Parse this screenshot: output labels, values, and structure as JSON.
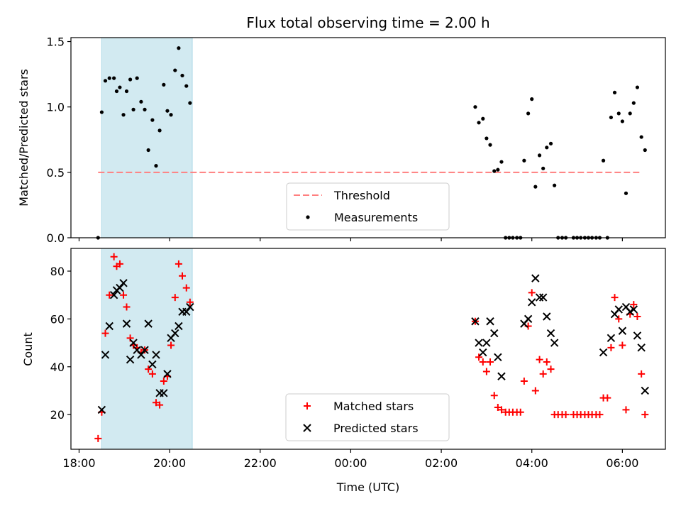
{
  "chart_data": [
    {
      "panel": "top",
      "type": "scatter",
      "title": "Flux total observing time = 2.00 h",
      "xlabel": "",
      "ylabel": "Matched/Predicted stars",
      "ylim": [
        0.0,
        1.53
      ],
      "yticks": [
        "0.0",
        "0.5",
        "1.0",
        "1.5"
      ],
      "ytick_values": [
        0.0,
        0.5,
        1.0,
        1.5
      ],
      "x_unit": "hours since 18:00 UTC",
      "xlim": [
        -0.18,
        12.95
      ],
      "shaded_span": [
        0.5,
        2.5
      ],
      "shade_color": "#add8e6",
      "threshold": {
        "name": "Threshold",
        "value": 0.5,
        "x_range": [
          0.42,
          12.4
        ],
        "color": "#ff7f7f"
      },
      "legend": {
        "placement": "lower-center",
        "entries": [
          "Threshold",
          "Measurements"
        ]
      },
      "series": [
        {
          "name": "Measurements",
          "color": "#000000",
          "points": [
            [
              0.42,
              0.0
            ],
            [
              0.5,
              0.96
            ],
            [
              0.58,
              1.2
            ],
            [
              0.67,
              1.22
            ],
            [
              0.77,
              1.22
            ],
            [
              0.83,
              1.12
            ],
            [
              0.9,
              1.15
            ],
            [
              0.98,
              0.94
            ],
            [
              1.05,
              1.12
            ],
            [
              1.13,
              1.21
            ],
            [
              1.2,
              0.98
            ],
            [
              1.28,
              1.22
            ],
            [
              1.37,
              1.04
            ],
            [
              1.45,
              0.98
            ],
            [
              1.53,
              0.67
            ],
            [
              1.62,
              0.9
            ],
            [
              1.7,
              0.55
            ],
            [
              1.78,
              0.82
            ],
            [
              1.87,
              1.17
            ],
            [
              1.95,
              0.97
            ],
            [
              2.03,
              0.94
            ],
            [
              2.12,
              1.28
            ],
            [
              2.2,
              1.45
            ],
            [
              2.28,
              1.24
            ],
            [
              2.37,
              1.16
            ],
            [
              2.45,
              1.03
            ],
            [
              8.75,
              1.0
            ],
            [
              8.83,
              0.88
            ],
            [
              8.92,
              0.91
            ],
            [
              9.0,
              0.76
            ],
            [
              9.08,
              0.71
            ],
            [
              9.17,
              0.51
            ],
            [
              9.25,
              0.52
            ],
            [
              9.33,
              0.58
            ],
            [
              9.42,
              0.0
            ],
            [
              9.5,
              0.0
            ],
            [
              9.58,
              0.0
            ],
            [
              9.67,
              0.0
            ],
            [
              9.75,
              0.0
            ],
            [
              9.83,
              0.59
            ],
            [
              9.92,
              0.95
            ],
            [
              10.0,
              1.06
            ],
            [
              10.08,
              0.39
            ],
            [
              10.17,
              0.63
            ],
            [
              10.25,
              0.53
            ],
            [
              10.33,
              0.69
            ],
            [
              10.42,
              0.72
            ],
            [
              10.5,
              0.4
            ],
            [
              10.58,
              0.0
            ],
            [
              10.67,
              0.0
            ],
            [
              10.75,
              0.0
            ],
            [
              10.92,
              0.0
            ],
            [
              11.0,
              0.0
            ],
            [
              11.08,
              0.0
            ],
            [
              11.17,
              0.0
            ],
            [
              11.25,
              0.0
            ],
            [
              11.33,
              0.0
            ],
            [
              11.42,
              0.0
            ],
            [
              11.5,
              0.0
            ],
            [
              11.58,
              0.59
            ],
            [
              11.67,
              0.0
            ],
            [
              11.75,
              0.92
            ],
            [
              11.83,
              1.11
            ],
            [
              11.92,
              0.95
            ],
            [
              12.0,
              0.89
            ],
            [
              12.08,
              0.34
            ],
            [
              12.17,
              0.95
            ],
            [
              12.25,
              1.03
            ],
            [
              12.33,
              1.15
            ],
            [
              12.42,
              0.77
            ],
            [
              12.5,
              0.67
            ]
          ]
        }
      ]
    },
    {
      "panel": "bottom",
      "type": "scatter",
      "title": "",
      "xlabel": "Time (UTC)",
      "ylabel": "Count",
      "ylim": [
        5.5,
        89.5
      ],
      "yticks": [
        "20",
        "40",
        "60",
        "80"
      ],
      "ytick_values": [
        20,
        40,
        60,
        80
      ],
      "x_unit": "hours since 18:00 UTC",
      "xlim": [
        -0.18,
        12.95
      ],
      "xticks": [
        "18:00",
        "20:00",
        "22:00",
        "00:00",
        "02:00",
        "04:00",
        "06:00"
      ],
      "xtick_values": [
        0,
        2,
        4,
        6,
        8,
        10,
        12
      ],
      "shaded_span": [
        0.5,
        2.5
      ],
      "shade_color": "#add8e6",
      "legend": {
        "placement": "lower-center",
        "entries": [
          "Matched stars",
          "Predicted stars"
        ]
      },
      "series": [
        {
          "name": "Matched stars",
          "marker": "plus",
          "color": "#ff0000",
          "points": [
            [
              0.42,
              10
            ],
            [
              0.5,
              21
            ],
            [
              0.58,
              54
            ],
            [
              0.67,
              70
            ],
            [
              0.77,
              86
            ],
            [
              0.83,
              82
            ],
            [
              0.9,
              83
            ],
            [
              0.98,
              70
            ],
            [
              1.05,
              65
            ],
            [
              1.13,
              52
            ],
            [
              1.2,
              49
            ],
            [
              1.28,
              48
            ],
            [
              1.37,
              46
            ],
            [
              1.45,
              47
            ],
            [
              1.53,
              39
            ],
            [
              1.62,
              37
            ],
            [
              1.7,
              25
            ],
            [
              1.78,
              24
            ],
            [
              1.87,
              34
            ],
            [
              1.95,
              36
            ],
            [
              2.03,
              49
            ],
            [
              2.12,
              69
            ],
            [
              2.2,
              83
            ],
            [
              2.28,
              78
            ],
            [
              2.37,
              73
            ],
            [
              2.45,
              67
            ],
            [
              8.75,
              59
            ],
            [
              8.83,
              44
            ],
            [
              8.92,
              42
            ],
            [
              9.0,
              38
            ],
            [
              9.08,
              42
            ],
            [
              9.17,
              28
            ],
            [
              9.25,
              23
            ],
            [
              9.33,
              22
            ],
            [
              9.42,
              21
            ],
            [
              9.5,
              21
            ],
            [
              9.58,
              21
            ],
            [
              9.67,
              21
            ],
            [
              9.75,
              21
            ],
            [
              9.83,
              34
            ],
            [
              9.92,
              57
            ],
            [
              10.0,
              71
            ],
            [
              10.08,
              30
            ],
            [
              10.17,
              43
            ],
            [
              10.25,
              37
            ],
            [
              10.33,
              42
            ],
            [
              10.42,
              39
            ],
            [
              10.5,
              20
            ],
            [
              10.58,
              20
            ],
            [
              10.67,
              20
            ],
            [
              10.75,
              20
            ],
            [
              10.92,
              20
            ],
            [
              11.0,
              20
            ],
            [
              11.08,
              20
            ],
            [
              11.17,
              20
            ],
            [
              11.25,
              20
            ],
            [
              11.33,
              20
            ],
            [
              11.42,
              20
            ],
            [
              11.5,
              20
            ],
            [
              11.58,
              27
            ],
            [
              11.67,
              27
            ],
            [
              11.75,
              48
            ],
            [
              11.83,
              69
            ],
            [
              11.92,
              60
            ],
            [
              12.0,
              49
            ],
            [
              12.08,
              22
            ],
            [
              12.17,
              62
            ],
            [
              12.25,
              66
            ],
            [
              12.33,
              61
            ],
            [
              12.42,
              37
            ],
            [
              12.5,
              20
            ]
          ]
        },
        {
          "name": "Predicted stars",
          "marker": "x",
          "color": "#000000",
          "points": [
            [
              0.5,
              22
            ],
            [
              0.58,
              45
            ],
            [
              0.67,
              57
            ],
            [
              0.77,
              70
            ],
            [
              0.83,
              72
            ],
            [
              0.9,
              73
            ],
            [
              0.98,
              75
            ],
            [
              1.05,
              58
            ],
            [
              1.13,
              43
            ],
            [
              1.2,
              50
            ],
            [
              1.28,
              47
            ],
            [
              1.37,
              45
            ],
            [
              1.45,
              47
            ],
            [
              1.53,
              58
            ],
            [
              1.62,
              41
            ],
            [
              1.7,
              45
            ],
            [
              1.78,
              29
            ],
            [
              1.87,
              29
            ],
            [
              1.95,
              37
            ],
            [
              2.03,
              52
            ],
            [
              2.12,
              54
            ],
            [
              2.2,
              57
            ],
            [
              2.28,
              63
            ],
            [
              2.37,
              63
            ],
            [
              2.45,
              65
            ],
            [
              8.75,
              59
            ],
            [
              8.83,
              50
            ],
            [
              8.92,
              46
            ],
            [
              9.0,
              50
            ],
            [
              9.08,
              59
            ],
            [
              9.17,
              54
            ],
            [
              9.25,
              44
            ],
            [
              9.33,
              36
            ],
            [
              9.83,
              58
            ],
            [
              9.92,
              60
            ],
            [
              10.0,
              67
            ],
            [
              10.08,
              77
            ],
            [
              10.17,
              69
            ],
            [
              10.25,
              69
            ],
            [
              10.33,
              61
            ],
            [
              10.42,
              54
            ],
            [
              10.5,
              50
            ],
            [
              11.58,
              46
            ],
            [
              11.75,
              52
            ],
            [
              11.83,
              62
            ],
            [
              11.92,
              64
            ],
            [
              12.0,
              55
            ],
            [
              12.08,
              65
            ],
            [
              12.17,
              63
            ],
            [
              12.25,
              64
            ],
            [
              12.33,
              53
            ],
            [
              12.42,
              48
            ],
            [
              12.5,
              30
            ]
          ]
        }
      ]
    }
  ]
}
